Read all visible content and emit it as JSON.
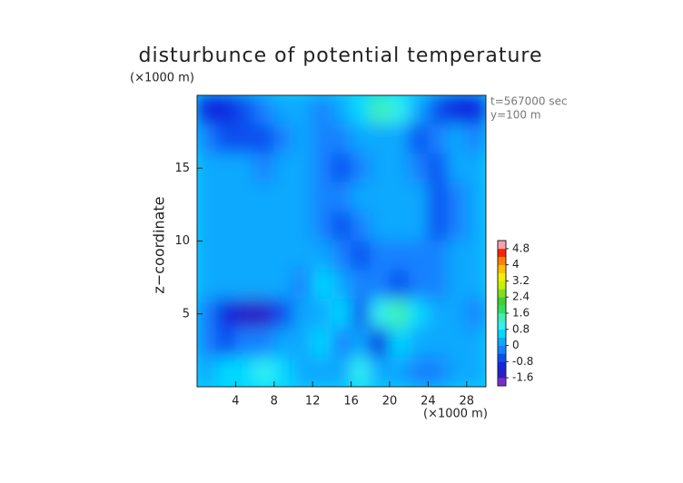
{
  "chart_data": {
    "type": "contour",
    "title": "disturbunce of potential temperature",
    "y_unit": "(×1000 m)",
    "x_unit": "(×1000 m)",
    "ylabel": "z−coordinate",
    "annotations": [
      "t=567000 sec",
      "y=100 m"
    ],
    "xlim": [
      0,
      30
    ],
    "ylim": [
      0,
      20
    ],
    "xticks": [
      4,
      8,
      12,
      16,
      20,
      24,
      28
    ],
    "yticks": [
      5,
      10,
      15
    ],
    "x": [
      1,
      3,
      5,
      7,
      9,
      11,
      13,
      15,
      17,
      19,
      21,
      23,
      25,
      27,
      29
    ],
    "y": [
      19,
      17,
      15,
      13,
      11,
      9,
      7,
      5,
      3,
      1
    ],
    "z": [
      [
        -1.2,
        -1.0,
        -0.6,
        -0.2,
        0.2,
        0.0,
        -0.2,
        0.2,
        0.6,
        1.2,
        0.8,
        0.0,
        -0.6,
        -1.0,
        -1.2
      ],
      [
        -0.4,
        -0.6,
        -0.8,
        -0.6,
        -0.2,
        0.0,
        -0.2,
        -0.4,
        0.0,
        0.2,
        0.0,
        -0.6,
        -0.4,
        0.0,
        -0.2
      ],
      [
        0.0,
        0.2,
        0.0,
        -0.2,
        0.2,
        0.2,
        -0.4,
        -0.6,
        -0.4,
        0.0,
        0.2,
        -0.2,
        -0.6,
        0.0,
        0.2
      ],
      [
        0.2,
        0.0,
        0.2,
        0.0,
        0.2,
        0.2,
        -0.4,
        -0.4,
        0.2,
        0.2,
        0.2,
        0.0,
        -0.6,
        -0.2,
        0.0
      ],
      [
        0.0,
        0.2,
        0.0,
        0.2,
        0.2,
        0.0,
        -0.2,
        -0.6,
        -0.2,
        0.2,
        0.2,
        0.0,
        -0.6,
        -0.2,
        0.2
      ],
      [
        0.2,
        0.0,
        0.2,
        0.0,
        0.2,
        0.2,
        0.0,
        -0.4,
        -0.6,
        -0.4,
        -0.2,
        -0.2,
        -0.4,
        0.0,
        0.2
      ],
      [
        0.0,
        0.2,
        0.0,
        0.2,
        0.0,
        -0.2,
        0.4,
        0.2,
        -0.2,
        -0.4,
        -0.6,
        -0.4,
        -0.2,
        0.2,
        0.0
      ],
      [
        -0.4,
        -1.0,
        -1.4,
        -1.4,
        -0.8,
        0.0,
        0.2,
        0.6,
        -0.6,
        0.8,
        1.4,
        0.6,
        0.2,
        0.0,
        -0.2
      ],
      [
        -0.2,
        -0.6,
        -0.4,
        -0.2,
        0.0,
        0.2,
        0.4,
        -0.2,
        0.0,
        -1.2,
        0.4,
        0.2,
        0.0,
        0.2,
        0.0
      ],
      [
        0.0,
        0.4,
        0.6,
        0.8,
        0.4,
        0.0,
        0.2,
        0.0,
        0.8,
        0.2,
        0.0,
        -0.2,
        -0.4,
        0.0,
        0.2
      ]
    ],
    "clim": [
      -2.0,
      5.2
    ],
    "cticks": [
      -1.6,
      -0.8,
      0,
      0.8,
      1.6,
      2.4,
      3.2,
      4,
      4.8
    ],
    "colors": [
      "#7a2cd0",
      "#2a1ec8",
      "#0f28e0",
      "#0a50f0",
      "#1482ff",
      "#10a8ff",
      "#00d8ff",
      "#30f0f0",
      "#40f0b0",
      "#30e060",
      "#40d030",
      "#80e020",
      "#c8f000",
      "#f0f000",
      "#ffc000",
      "#ff8000",
      "#ff2000",
      "#f8a0b0"
    ]
  }
}
